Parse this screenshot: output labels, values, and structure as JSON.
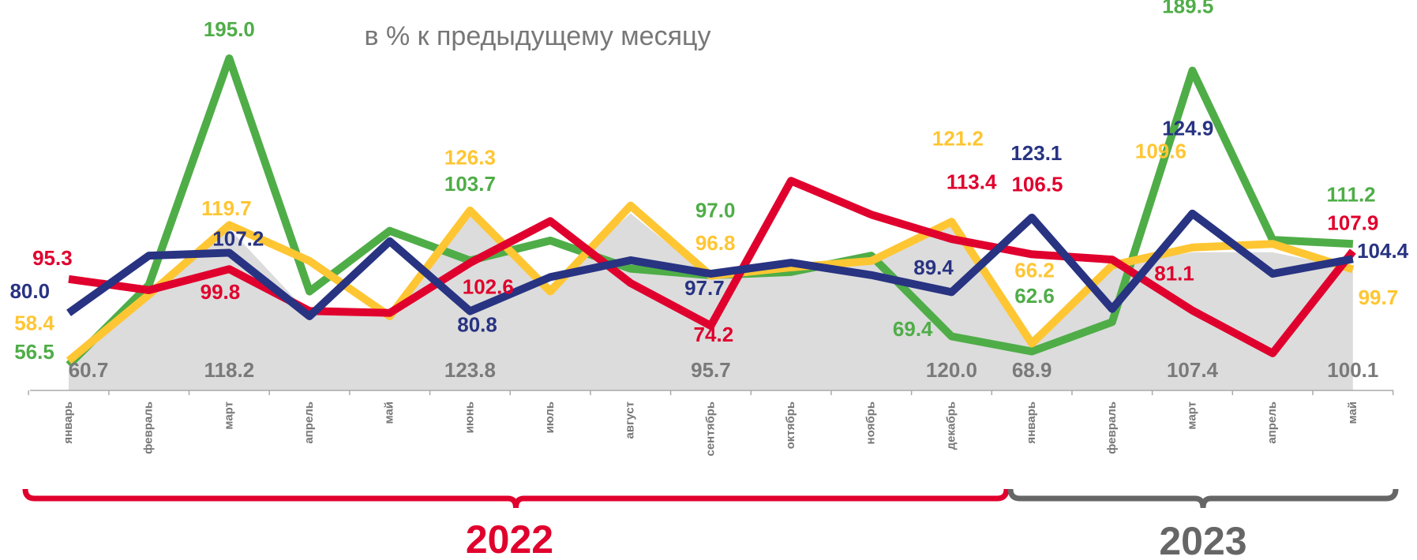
{
  "chart_data": {
    "type": "line",
    "title": "в % к предыдущему месяцу",
    "categories": [
      "январь",
      "февраль",
      "март",
      "апрель",
      "май",
      "июнь",
      "июль",
      "август",
      "сентябрь",
      "октябрь",
      "ноябрь",
      "декабрь",
      "январь",
      "февраль",
      "март",
      "апрель",
      "май"
    ],
    "year_labels": [
      "2022",
      "2023"
    ],
    "ylim": [
      45,
      200
    ],
    "series": [
      {
        "color": "#dcdcdc",
        "label_color": "#7a7a7a",
        "area": true,
        "values": [
          60.7,
          91.2,
          118.2,
          79.4,
          78.0,
          123.8,
          92.7,
          125.0,
          95.7,
          99.4,
          103.0,
          120.0,
          68.9,
          101.5,
          107.4,
          107.4,
          100.1
        ],
        "value_labels": [
          "60.7",
          null,
          "118.2",
          null,
          null,
          "123.8",
          null,
          null,
          "95.7",
          null,
          null,
          "120.0",
          "68.9",
          null,
          "107.4",
          null,
          "100.1"
        ]
      },
      {
        "color": "#4fad48",
        "values": [
          56.5,
          92.7,
          195.0,
          89.7,
          117.1,
          103.7,
          112.7,
          100.0,
          97.0,
          98.5,
          105.9,
          69.4,
          62.6,
          75.9,
          189.5,
          113.0,
          111.2
        ],
        "value_labels": [
          "56.5",
          null,
          "195.0",
          null,
          null,
          "103.7",
          null,
          null,
          "97.0",
          null,
          null,
          "69.4",
          "62.6",
          null,
          "189.5",
          null,
          "111.2"
        ]
      },
      {
        "color": "#ffc633",
        "values": [
          58.4,
          88.3,
          119.7,
          103.5,
          78.5,
          126.3,
          89.7,
          128.5,
          96.8,
          100.6,
          103.5,
          121.2,
          66.2,
          101.5,
          109.6,
          111.2,
          99.7
        ],
        "value_labels": [
          "58.4",
          null,
          "119.7",
          null,
          null,
          "126.3",
          null,
          null,
          "96.8",
          null,
          null,
          "121.2",
          "66.2",
          null,
          "109.6",
          null,
          "99.7"
        ]
      },
      {
        "color": "#e0002d",
        "values": [
          95.3,
          90.3,
          99.8,
          80.9,
          80.0,
          102.6,
          121.5,
          93.5,
          74.2,
          139.7,
          124.4,
          113.4,
          106.5,
          104.1,
          81.1,
          61.8,
          107.9
        ],
        "value_labels": [
          "95.3",
          null,
          "99.8",
          null,
          null,
          "102.6",
          null,
          null,
          "74.2",
          null,
          null,
          "113.4",
          "106.5",
          null,
          "81.1",
          null,
          "107.9"
        ]
      },
      {
        "color": "#283382",
        "values": [
          80.0,
          105.9,
          107.2,
          78.5,
          112.4,
          80.8,
          96.2,
          103.8,
          97.7,
          102.7,
          97.1,
          89.4,
          123.1,
          81.8,
          124.9,
          97.7,
          104.4
        ],
        "value_labels": [
          "80.0",
          null,
          "107.2",
          null,
          null,
          "80.8",
          null,
          null,
          "97.7",
          null,
          null,
          "89.4",
          "123.1",
          null,
          "124.9",
          null,
          "104.4"
        ]
      }
    ]
  }
}
